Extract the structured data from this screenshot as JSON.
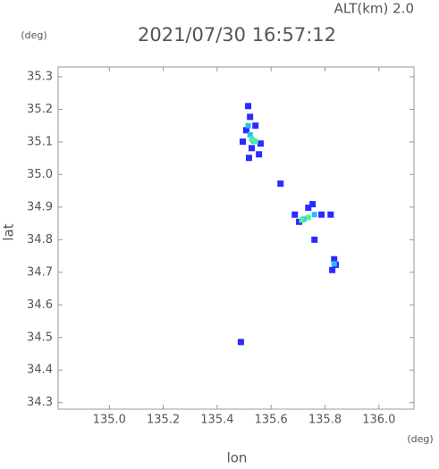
{
  "chart_data": {
    "type": "scatter",
    "title": "2021/07/30 16:57:12",
    "subtitle": "ALT(km) 2.0",
    "x_label": "lon",
    "y_label": "lat",
    "x_unit": "(deg)",
    "y_unit": "(deg)",
    "xlim": [
      134.81,
      136.13
    ],
    "ylim": [
      34.28,
      35.33
    ],
    "xticks": [
      {
        "value": 135.0,
        "label": "135.0"
      },
      135.2,
      135.4,
      135.6,
      135.8,
      {
        "value": 136.0,
        "label": "136.0"
      }
    ],
    "yticks": [
      34.3,
      34.4,
      34.5,
      34.6,
      34.7,
      34.8,
      34.9,
      {
        "value": 35.0,
        "label": "35.0"
      },
      35.1,
      35.2,
      35.3
    ],
    "series": [
      {
        "color": "#2b2bff",
        "x": [
          135.515,
          135.522,
          135.508,
          135.528,
          135.555,
          135.495,
          135.542,
          135.561,
          135.688,
          135.738,
          135.787,
          135.821,
          135.754,
          135.704,
          135.761,
          135.834,
          135.827,
          135.84,
          135.635,
          135.488,
          135.518
        ],
        "y": [
          35.21,
          35.177,
          35.136,
          35.081,
          35.062,
          35.101,
          35.15,
          35.095,
          34.877,
          34.898,
          34.877,
          34.877,
          34.909,
          34.855,
          34.8,
          34.74,
          34.707,
          34.723,
          34.972,
          34.486,
          35.051
        ]
      },
      {
        "color": "#2fb8ff",
        "x": [
          135.522,
          135.535,
          135.515,
          135.721,
          135.761,
          135.834
        ],
        "y": [
          35.122,
          35.103,
          35.15,
          34.863,
          34.877,
          34.726
        ]
      },
      {
        "color": "#4cf09a",
        "x": [
          135.528,
          135.542,
          135.714,
          135.738
        ],
        "y": [
          35.109,
          35.101,
          34.86,
          34.868
        ]
      }
    ]
  }
}
